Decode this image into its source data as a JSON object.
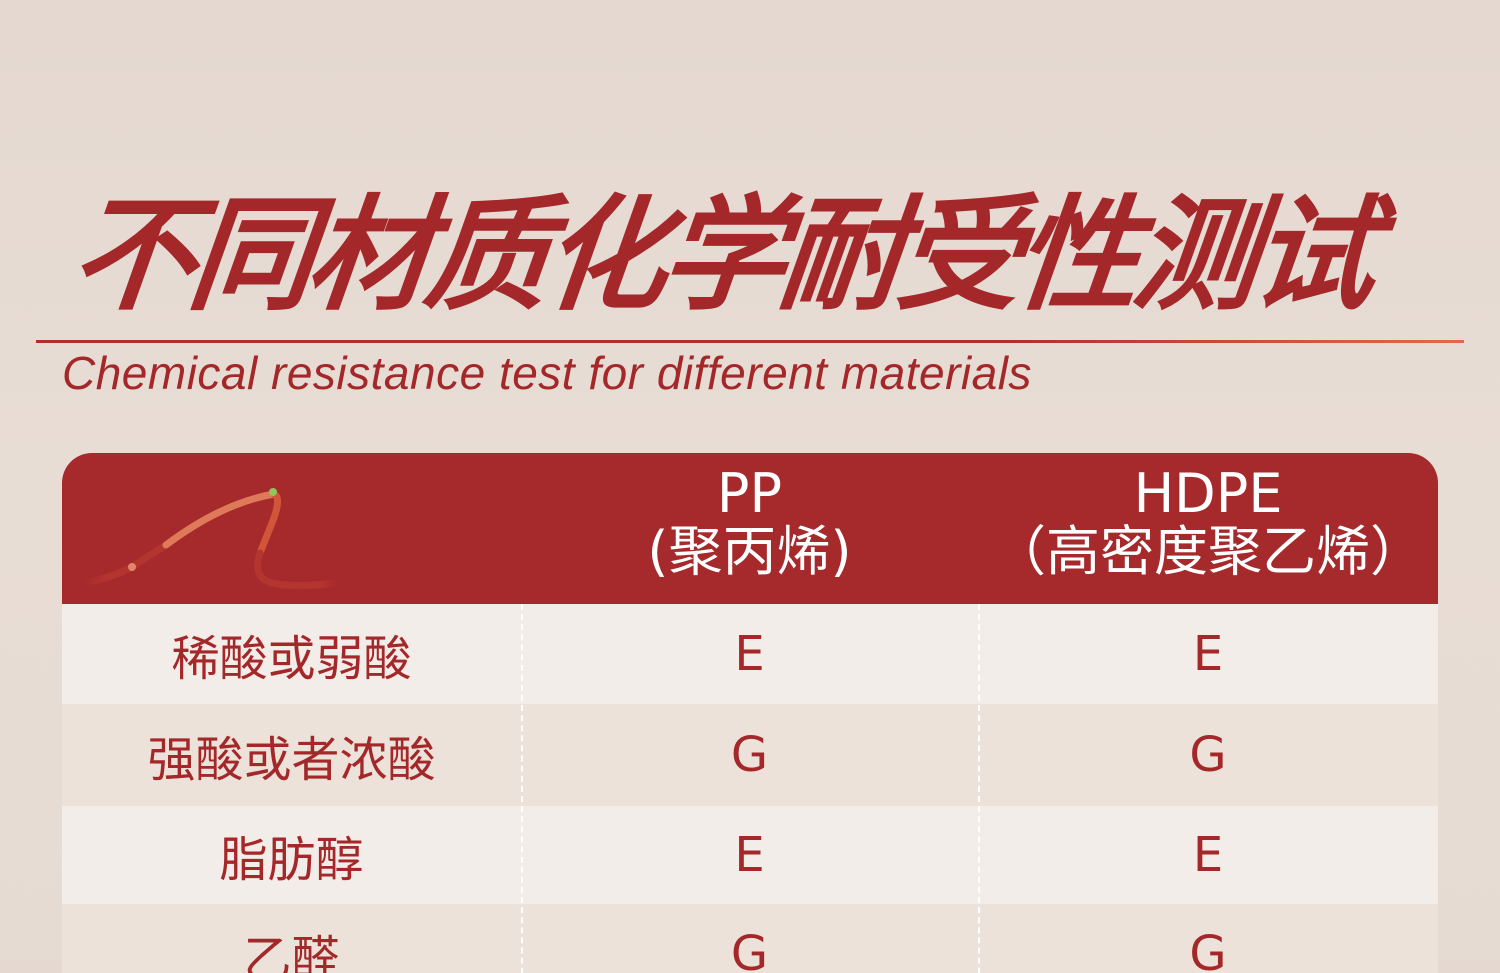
{
  "title": "不同材质化学耐受性测试",
  "subtitle": "Chemical resistance test for different materials",
  "colors": {
    "brand_red": "#a6292b",
    "row_light": "#f2ede8",
    "row_dark": "#ece2da",
    "accent_orange": "#e26a4c",
    "dot_green": "#8ec65a"
  },
  "table": {
    "columns": [
      {
        "name": "PP",
        "sub": "(聚丙烯)"
      },
      {
        "name": "HDPE",
        "sub": "（高密度聚乙烯）"
      }
    ],
    "rows": [
      {
        "chemical": "稀酸或弱酸",
        "pp": "E",
        "hdpe": "E"
      },
      {
        "chemical": "强酸或者浓酸",
        "pp": "G",
        "hdpe": "G"
      },
      {
        "chemical": "脂肪醇",
        "pp": "E",
        "hdpe": "E"
      },
      {
        "chemical": "乙醛",
        "pp": "G",
        "hdpe": "G"
      }
    ]
  }
}
